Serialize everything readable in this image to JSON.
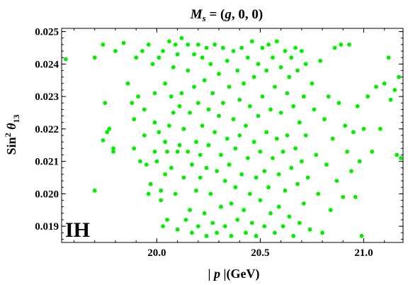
{
  "chart_data": {
    "type": "scatter",
    "title_parts": [
      "M",
      "s",
      " = (",
      "g",
      ", 0, 0)"
    ],
    "title": "M_s = (g, 0, 0)",
    "xlabel_parts": [
      "| ",
      "p",
      " |",
      "(GeV)"
    ],
    "xlabel": "|p|(GeV)",
    "ylabel_parts": [
      "Sin",
      "2",
      " θ",
      "13"
    ],
    "ylabel": "Sin^2 θ13",
    "annotation": "IH",
    "xlim": [
      19.54,
      21.19
    ],
    "ylim": [
      0.0185,
      0.0251
    ],
    "xticks": [
      20.0,
      20.5,
      21.0
    ],
    "xtick_labels": [
      "20.0",
      "20.5",
      "21.0"
    ],
    "yticks": [
      0.019,
      0.02,
      0.021,
      0.022,
      0.023,
      0.024,
      0.025
    ],
    "ytick_labels": [
      "0.019",
      "0.020",
      "0.021",
      "0.022",
      "0.023",
      "0.024",
      "0.025"
    ],
    "grid": false,
    "marker_color": "#00ee00",
    "series": [
      {
        "points": [
          [
            19.56,
            0.02415
          ],
          [
            19.7,
            0.0242
          ],
          [
            19.7,
            0.0201
          ],
          [
            19.74,
            0.0246
          ],
          [
            19.75,
            0.0228
          ],
          [
            19.74,
            0.02165
          ],
          [
            19.76,
            0.0219
          ],
          [
            19.77,
            0.022
          ],
          [
            19.79,
            0.0213
          ],
          [
            19.79,
            0.0214
          ],
          [
            19.8,
            0.0244
          ],
          [
            19.84,
            0.02465
          ],
          [
            19.86,
            0.0234
          ],
          [
            19.88,
            0.0228
          ],
          [
            19.89,
            0.0223
          ],
          [
            19.89,
            0.0214
          ],
          [
            19.9,
            0.0242
          ],
          [
            19.91,
            0.023
          ],
          [
            19.92,
            0.021
          ],
          [
            19.93,
            0.0244
          ],
          [
            19.94,
            0.0226
          ],
          [
            19.94,
            0.0218
          ],
          [
            19.95,
            0.0209
          ],
          [
            19.96,
            0.0246
          ],
          [
            19.96,
            0.02
          ],
          [
            19.97,
            0.0203
          ],
          [
            19.98,
            0.024
          ],
          [
            19.99,
            0.0231
          ],
          [
            19.99,
            0.0222
          ],
          [
            19.99,
            0.0213
          ],
          [
            20.0,
            0.021
          ],
          [
            20.01,
            0.0242
          ],
          [
            20.01,
            0.0219
          ],
          [
            20.02,
            0.0201
          ],
          [
            20.02,
            0.0198
          ],
          [
            20.03,
            0.019
          ],
          [
            20.03,
            0.0244
          ],
          [
            20.04,
            0.0234
          ],
          [
            20.04,
            0.0216
          ],
          [
            20.04,
            0.0206
          ],
          [
            20.05,
            0.0213
          ],
          [
            20.05,
            0.0192
          ],
          [
            20.06,
            0.0247
          ],
          [
            20.06,
            0.0221
          ],
          [
            20.07,
            0.023
          ],
          [
            20.07,
            0.0208
          ],
          [
            20.08,
            0.0225
          ],
          [
            20.08,
            0.0239
          ],
          [
            20.09,
            0.0246
          ],
          [
            20.09,
            0.02
          ],
          [
            20.1,
            0.0243
          ],
          [
            20.1,
            0.0213
          ],
          [
            20.1,
            0.0189
          ],
          [
            20.11,
            0.0227
          ],
          [
            20.11,
            0.0215
          ],
          [
            20.12,
            0.0248
          ],
          [
            20.12,
            0.0231
          ],
          [
            20.13,
            0.022
          ],
          [
            20.13,
            0.0205
          ],
          [
            20.14,
            0.0192
          ],
          [
            20.15,
            0.0246
          ],
          [
            20.15,
            0.0238
          ],
          [
            20.15,
            0.0213
          ],
          [
            20.16,
            0.0225
          ],
          [
            20.16,
            0.0195
          ],
          [
            20.17,
            0.0209
          ],
          [
            20.17,
            0.0188
          ],
          [
            20.18,
            0.0243
          ],
          [
            20.18,
            0.0233
          ],
          [
            20.19,
            0.0216
          ],
          [
            20.19,
            0.0201
          ],
          [
            20.2,
            0.0246
          ],
          [
            20.2,
            0.0228
          ],
          [
            20.2,
            0.019
          ],
          [
            20.21,
            0.0212
          ],
          [
            20.21,
            0.0205
          ],
          [
            20.22,
            0.0242
          ],
          [
            20.22,
            0.0221
          ],
          [
            20.23,
            0.0235
          ],
          [
            20.23,
            0.0194
          ],
          [
            20.24,
            0.0245
          ],
          [
            20.24,
            0.0208
          ],
          [
            20.24,
            0.0187
          ],
          [
            20.25,
            0.0226
          ],
          [
            20.25,
            0.0215
          ],
          [
            20.26,
            0.024
          ],
          [
            20.26,
            0.02
          ],
          [
            20.27,
            0.0231
          ],
          [
            20.27,
            0.0191
          ],
          [
            20.28,
            0.0246
          ],
          [
            20.28,
            0.0219
          ],
          [
            20.29,
            0.0207
          ],
          [
            20.29,
            0.0188
          ],
          [
            20.3,
            0.0237
          ],
          [
            20.3,
            0.0224
          ],
          [
            20.31,
            0.0212
          ],
          [
            20.31,
            0.0196
          ],
          [
            20.32,
            0.0245
          ],
          [
            20.32,
            0.0228
          ],
          [
            20.33,
            0.0204
          ],
          [
            20.33,
            0.019
          ],
          [
            20.34,
            0.0241
          ],
          [
            20.34,
            0.0217
          ],
          [
            20.35,
            0.0233
          ],
          [
            20.35,
            0.0209
          ],
          [
            20.36,
            0.0197
          ],
          [
            20.36,
            0.0187
          ],
          [
            20.37,
            0.0244
          ],
          [
            20.37,
            0.0223
          ],
          [
            20.38,
            0.0214
          ],
          [
            20.38,
            0.0202
          ],
          [
            20.39,
            0.0238
          ],
          [
            20.39,
            0.0192
          ],
          [
            20.4,
            0.0229
          ],
          [
            20.4,
            0.0218
          ],
          [
            20.41,
            0.0245
          ],
          [
            20.41,
            0.0206
          ],
          [
            20.42,
            0.0234
          ],
          [
            20.42,
            0.0195
          ],
          [
            20.43,
            0.0221
          ],
          [
            20.43,
            0.0188
          ],
          [
            20.44,
            0.0242
          ],
          [
            20.44,
            0.0211
          ],
          [
            20.45,
            0.0227
          ],
          [
            20.45,
            0.02
          ],
          [
            20.46,
            0.0247
          ],
          [
            20.46,
            0.0191
          ],
          [
            20.47,
            0.0236
          ],
          [
            20.47,
            0.0216
          ],
          [
            20.48,
            0.0205
          ],
          [
            20.48,
            0.0187
          ],
          [
            20.49,
            0.024
          ],
          [
            20.49,
            0.0224
          ],
          [
            20.5,
            0.0213
          ],
          [
            20.5,
            0.0198
          ],
          [
            20.51,
            0.0245
          ],
          [
            20.51,
            0.023
          ],
          [
            20.52,
            0.0207
          ],
          [
            20.52,
            0.019
          ],
          [
            20.53,
            0.0238
          ],
          [
            20.53,
            0.0219
          ],
          [
            20.54,
            0.0246
          ],
          [
            20.54,
            0.0202
          ],
          [
            20.55,
            0.0226
          ],
          [
            20.55,
            0.0194
          ],
          [
            20.56,
            0.0242
          ],
          [
            20.56,
            0.0211
          ],
          [
            20.57,
            0.0233
          ],
          [
            20.57,
            0.0188
          ],
          [
            20.58,
            0.0247
          ],
          [
            20.58,
            0.0217
          ],
          [
            20.59,
            0.0206
          ],
          [
            20.59,
            0.0196
          ],
          [
            20.6,
            0.0239
          ],
          [
            20.6,
            0.0225
          ],
          [
            20.61,
            0.0213
          ],
          [
            20.61,
            0.019
          ],
          [
            20.62,
            0.0244
          ],
          [
            20.62,
            0.0201
          ],
          [
            20.63,
            0.0231
          ],
          [
            20.63,
            0.0218
          ],
          [
            20.64,
            0.0236
          ],
          [
            20.64,
            0.0193
          ],
          [
            20.65,
            0.0242
          ],
          [
            20.65,
            0.0208
          ],
          [
            20.66,
            0.0227
          ],
          [
            20.66,
            0.0187
          ],
          [
            20.67,
            0.0245
          ],
          [
            20.67,
            0.0214
          ],
          [
            20.68,
            0.0238
          ],
          [
            20.68,
            0.0203
          ],
          [
            20.69,
            0.0222
          ],
          [
            20.69,
            0.0191
          ],
          [
            20.7,
            0.0244
          ],
          [
            20.7,
            0.021
          ],
          [
            20.71,
            0.023
          ],
          [
            20.71,
            0.0197
          ],
          [
            20.72,
            0.024
          ],
          [
            20.72,
            0.0218
          ],
          [
            20.73,
            0.0205
          ],
          [
            20.74,
            0.0189
          ],
          [
            20.75,
            0.0234
          ],
          [
            20.76,
            0.0226
          ],
          [
            20.77,
            0.0212
          ],
          [
            20.78,
            0.02
          ],
          [
            20.79,
            0.0241
          ],
          [
            20.8,
            0.0188
          ],
          [
            20.81,
            0.0223
          ],
          [
            20.82,
            0.0209
          ],
          [
            20.83,
            0.023
          ],
          [
            20.84,
            0.0195
          ],
          [
            20.85,
            0.0217
          ],
          [
            20.86,
            0.0245
          ],
          [
            20.87,
            0.0204
          ],
          [
            20.88,
            0.0228
          ],
          [
            20.89,
            0.0246
          ],
          [
            20.9,
            0.0199
          ],
          [
            20.91,
            0.0221
          ],
          [
            20.92,
            0.0213
          ],
          [
            20.93,
            0.0246
          ],
          [
            20.94,
            0.0207
          ],
          [
            20.95,
            0.0219
          ],
          [
            20.96,
            0.0199
          ],
          [
            20.97,
            0.0227
          ],
          [
            20.98,
            0.021
          ],
          [
            20.99,
            0.0187
          ],
          [
            21.0,
            0.022
          ],
          [
            21.02,
            0.023
          ],
          [
            21.04,
            0.0213
          ],
          [
            21.06,
            0.0233
          ],
          [
            21.08,
            0.022
          ],
          [
            21.1,
            0.0234
          ],
          [
            21.12,
            0.0242
          ],
          [
            21.13,
            0.0229
          ],
          [
            21.15,
            0.0232
          ],
          [
            21.16,
            0.0212
          ],
          [
            21.17,
            0.0236
          ],
          [
            21.18,
            0.0211
          ]
        ]
      }
    ]
  }
}
